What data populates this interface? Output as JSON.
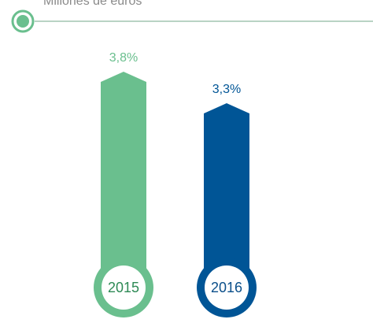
{
  "chart_data": {
    "type": "arrow-bar",
    "subtitle": "Millones de euros",
    "categories": [
      "2015",
      "2016"
    ],
    "values": [
      3.8,
      3.3
    ],
    "value_labels": [
      "3,8%",
      "3,3%"
    ],
    "colors": [
      "#6abf8e",
      "#005596"
    ]
  }
}
